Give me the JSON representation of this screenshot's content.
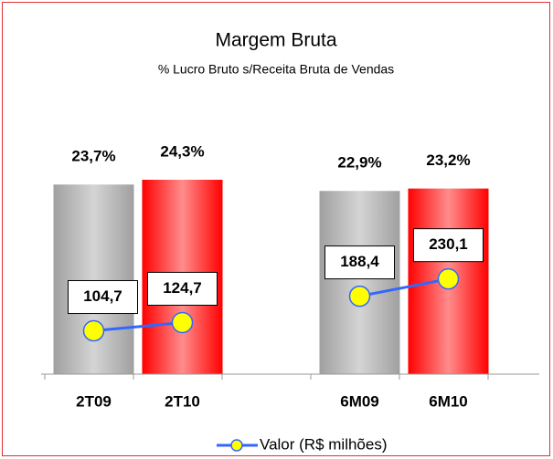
{
  "chart_data": {
    "type": "bar",
    "title": "Margem Bruta",
    "subtitle": "% Lucro Bruto s/Receita Bruta de Vendas",
    "categories": [
      "2T09",
      "2T10",
      null,
      "6M09",
      "6M10"
    ],
    "values": [
      23.7,
      24.3,
      null,
      22.9,
      23.2
    ],
    "value_labels": [
      "23,7%",
      "24,3%",
      null,
      "22,9%",
      "23,2%"
    ],
    "colors": [
      "#a0a0a0",
      "#ff0000",
      null,
      "#a0a0a0",
      "#ff0000"
    ],
    "ylim": [
      0,
      30
    ],
    "y2lim": [
      0,
      580
    ],
    "legend": "bottom",
    "series": [
      {
        "name": "Valor (R$ milhões)",
        "type": "line",
        "axis": "y2",
        "color": "#3366ff",
        "marker_color": "#ffff00",
        "values": [
          104.7,
          124.7,
          null,
          188.4,
          230.1
        ],
        "value_labels": [
          "104,7",
          "124,7",
          null,
          "188,4",
          "230,1"
        ]
      }
    ]
  }
}
